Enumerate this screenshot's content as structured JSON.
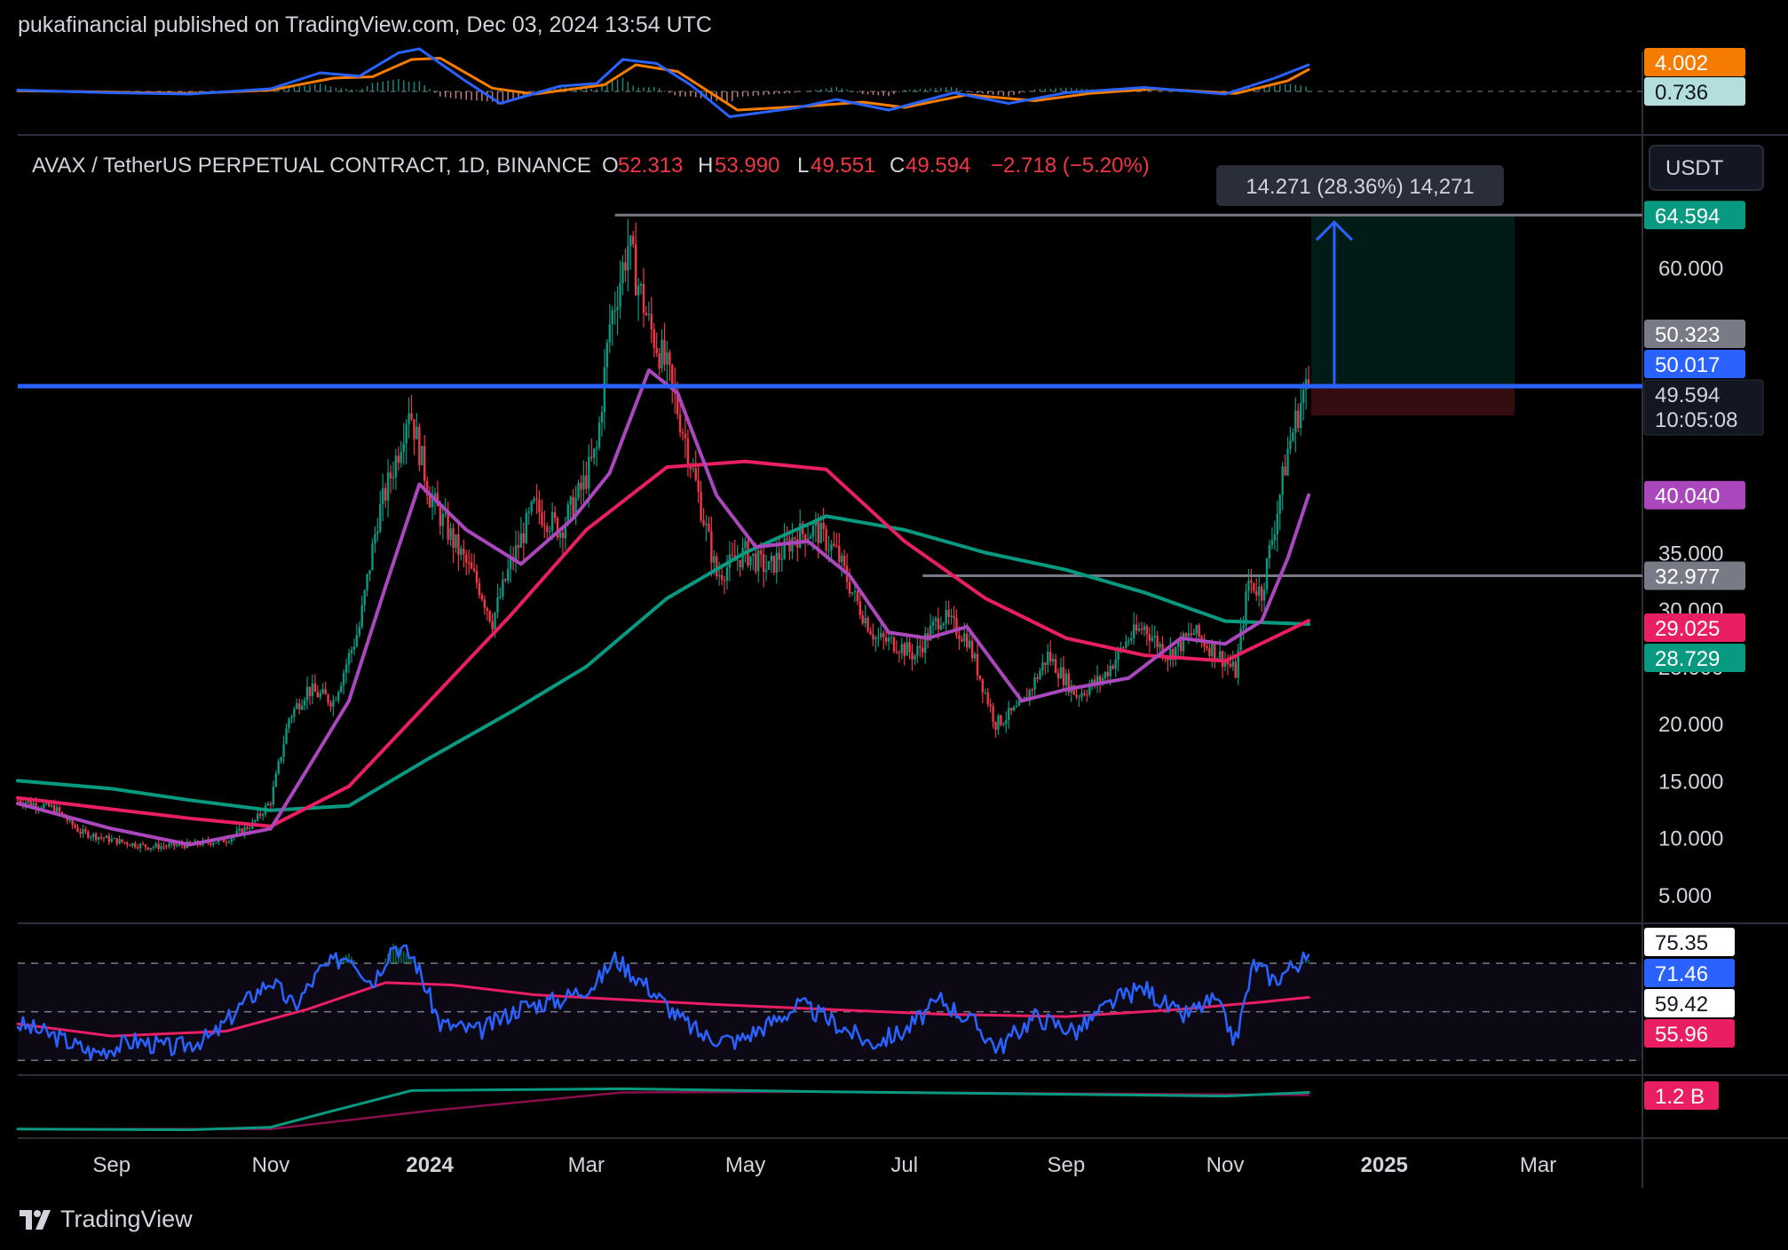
{
  "header": {
    "publisher_line": "pukafinancial published on TradingView.com, Dec 03, 2024 13:54 UTC"
  },
  "legend": {
    "symbol": "AVAX / TetherUS PERPETUAL CONTRACT, 1D, BINANCE",
    "o_label": "O",
    "o_value": "52.313",
    "h_label": "H",
    "h_value": "53.990",
    "l_label": "L",
    "l_value": "49.551",
    "c_label": "C",
    "c_value": "49.594",
    "change": "−2.718 (−5.20%)"
  },
  "currency_button": "USDT",
  "measure_label": "14.271 (28.36%) 14,271",
  "footer": {
    "brand": "TradingView"
  },
  "colors": {
    "up": "#089981",
    "down": "#f23645",
    "ma_short": "#ab47bc",
    "ma_mid": "#e91e63",
    "ma_long": "#089981",
    "level": "#2962ff",
    "grey_line": "#787b86"
  },
  "chart_data": {
    "type": "candlestick",
    "x_labels": [
      {
        "label": "Sep",
        "date": "2023-09-01",
        "bold": false
      },
      {
        "label": "Nov",
        "date": "2023-11-01",
        "bold": false
      },
      {
        "label": "2024",
        "date": "2024-01-01",
        "bold": true
      },
      {
        "label": "Mar",
        "date": "2024-03-01",
        "bold": false
      },
      {
        "label": "May",
        "date": "2024-05-01",
        "bold": false
      },
      {
        "label": "Jul",
        "date": "2024-07-01",
        "bold": false
      },
      {
        "label": "Sep",
        "date": "2024-09-01",
        "bold": false
      },
      {
        "label": "Nov",
        "date": "2024-11-01",
        "bold": false
      },
      {
        "label": "2025",
        "date": "2025-01-01",
        "bold": true
      },
      {
        "label": "Mar",
        "date": "2025-03-01",
        "bold": false
      }
    ],
    "x_range": [
      "2023-07-27",
      "2025-04-10"
    ],
    "main": {
      "ylim": [
        2.5,
        71
      ],
      "y_ticks": [
        "5.000",
        "10.000",
        "15.000",
        "20.000",
        "25.000",
        "30.000",
        "35.000",
        "60.000"
      ],
      "y_tick_values": [
        5,
        10,
        15,
        20,
        25,
        30,
        35,
        60
      ],
      "price_points": [
        [
          "2023-07-27",
          13.3
        ],
        [
          "2023-08-10",
          12.6
        ],
        [
          "2023-08-20",
          10.5
        ],
        [
          "2023-09-01",
          9.8
        ],
        [
          "2023-09-15",
          9.2
        ],
        [
          "2023-10-01",
          9.4
        ],
        [
          "2023-10-15",
          9.8
        ],
        [
          "2023-10-25",
          11.2
        ],
        [
          "2023-11-01",
          13.2
        ],
        [
          "2023-11-08",
          20.5
        ],
        [
          "2023-11-15",
          23.0
        ],
        [
          "2023-11-25",
          22.0
        ],
        [
          "2023-12-05",
          28.5
        ],
        [
          "2023-12-12",
          38.0
        ],
        [
          "2023-12-20",
          44.0
        ],
        [
          "2023-12-24",
          48.0
        ],
        [
          "2024-01-01",
          40.0
        ],
        [
          "2024-01-10",
          36.0
        ],
        [
          "2024-01-20",
          32.0
        ],
        [
          "2024-01-25",
          29.0
        ],
        [
          "2024-02-01",
          34.0
        ],
        [
          "2024-02-10",
          39.0
        ],
        [
          "2024-02-20",
          37.0
        ],
        [
          "2024-02-28",
          40.5
        ],
        [
          "2024-03-05",
          44.0
        ],
        [
          "2024-03-10",
          55.0
        ],
        [
          "2024-03-17",
          62.0
        ],
        [
          "2024-03-25",
          55.0
        ],
        [
          "2024-04-01",
          51.0
        ],
        [
          "2024-04-08",
          45.0
        ],
        [
          "2024-04-15",
          38.0
        ],
        [
          "2024-04-20",
          33.0
        ],
        [
          "2024-05-01",
          35.0
        ],
        [
          "2024-05-10",
          33.5
        ],
        [
          "2024-05-20",
          36.5
        ],
        [
          "2024-05-28",
          37.0
        ],
        [
          "2024-06-05",
          35.0
        ],
        [
          "2024-06-12",
          31.0
        ],
        [
          "2024-06-20",
          27.5
        ],
        [
          "2024-06-28",
          27.0
        ],
        [
          "2024-07-05",
          26.0
        ],
        [
          "2024-07-15",
          29.5
        ],
        [
          "2024-07-25",
          27.5
        ],
        [
          "2024-08-05",
          20.0
        ],
        [
          "2024-08-15",
          21.5
        ],
        [
          "2024-08-25",
          26.0
        ],
        [
          "2024-09-05",
          22.5
        ],
        [
          "2024-09-15",
          24.0
        ],
        [
          "2024-09-25",
          27.5
        ],
        [
          "2024-10-01",
          28.5
        ],
        [
          "2024-10-10",
          26.0
        ],
        [
          "2024-10-20",
          28.0
        ],
        [
          "2024-11-01",
          25.5
        ],
        [
          "2024-11-05",
          24.5
        ],
        [
          "2024-11-10",
          32.5
        ],
        [
          "2024-11-15",
          31.5
        ],
        [
          "2024-11-20",
          37.5
        ],
        [
          "2024-11-25",
          44.0
        ],
        [
          "2024-12-01",
          49.0
        ],
        [
          "2024-12-03",
          49.594
        ]
      ],
      "ma_short_points": [
        [
          "2023-07-27",
          13.0
        ],
        [
          "2023-09-01",
          10.8
        ],
        [
          "2023-10-01",
          9.4
        ],
        [
          "2023-11-01",
          10.8
        ],
        [
          "2023-11-15",
          16.0
        ],
        [
          "2023-12-01",
          22.0
        ],
        [
          "2023-12-15",
          32.0
        ],
        [
          "2023-12-28",
          41.0
        ],
        [
          "2024-01-15",
          37.0
        ],
        [
          "2024-02-05",
          34.0
        ],
        [
          "2024-02-25",
          38.0
        ],
        [
          "2024-03-10",
          42.0
        ],
        [
          "2024-03-25",
          51.0
        ],
        [
          "2024-04-05",
          49.0
        ],
        [
          "2024-04-20",
          40.0
        ],
        [
          "2024-05-05",
          35.5
        ],
        [
          "2024-05-25",
          36.0
        ],
        [
          "2024-06-10",
          33.0
        ],
        [
          "2024-06-25",
          28.0
        ],
        [
          "2024-07-10",
          27.5
        ],
        [
          "2024-07-25",
          28.5
        ],
        [
          "2024-08-15",
          22.0
        ],
        [
          "2024-09-01",
          23.0
        ],
        [
          "2024-09-25",
          24.0
        ],
        [
          "2024-10-15",
          27.5
        ],
        [
          "2024-11-01",
          27.0
        ],
        [
          "2024-11-15",
          29.0
        ],
        [
          "2024-11-25",
          34.5
        ],
        [
          "2024-12-03",
          40.04
        ]
      ],
      "ma_mid_points": [
        [
          "2023-07-27",
          13.5
        ],
        [
          "2023-09-01",
          12.5
        ],
        [
          "2023-10-01",
          11.7
        ],
        [
          "2023-11-01",
          11.0
        ],
        [
          "2023-12-01",
          14.5
        ],
        [
          "2024-01-01",
          22.0
        ],
        [
          "2024-02-01",
          29.5
        ],
        [
          "2024-03-01",
          37.0
        ],
        [
          "2024-04-01",
          42.5
        ],
        [
          "2024-05-01",
          43.0
        ],
        [
          "2024-06-01",
          42.3
        ],
        [
          "2024-07-01",
          36.0
        ],
        [
          "2024-08-01",
          31.0
        ],
        [
          "2024-09-01",
          27.5
        ],
        [
          "2024-10-01",
          26.0
        ],
        [
          "2024-11-01",
          25.5
        ],
        [
          "2024-12-03",
          29.025
        ]
      ],
      "ma_long_points": [
        [
          "2023-07-27",
          15.0
        ],
        [
          "2023-09-01",
          14.3
        ],
        [
          "2023-10-01",
          13.3
        ],
        [
          "2023-11-01",
          12.4
        ],
        [
          "2023-12-01",
          12.8
        ],
        [
          "2024-01-01",
          17.0
        ],
        [
          "2024-02-01",
          21.0
        ],
        [
          "2024-03-01",
          25.0
        ],
        [
          "2024-04-01",
          31.0
        ],
        [
          "2024-05-01",
          35.0
        ],
        [
          "2024-06-01",
          38.2
        ],
        [
          "2024-07-01",
          37.0
        ],
        [
          "2024-08-01",
          35.0
        ],
        [
          "2024-09-01",
          33.5
        ],
        [
          "2024-10-01",
          31.5
        ],
        [
          "2024-11-01",
          29.0
        ],
        [
          "2024-12-03",
          28.729
        ]
      ],
      "resistance_level": 49.594,
      "upper_grey_line": {
        "value": 64.594,
        "start": "2024-03-12"
      },
      "lower_grey_line": {
        "value": 32.977,
        "start": "2024-07-08"
      },
      "position": {
        "start": "2024-12-04",
        "end": "2025-02-20",
        "entry": 49.594,
        "target": 64.594,
        "stop": 47.03
      },
      "price_tags": [
        {
          "value": 64.594,
          "label": "64.594",
          "bg": "#089981",
          "fg": "#ffffff"
        },
        {
          "value": 50.323,
          "label": "50.323",
          "bg": "#787b86",
          "fg": "#ffffff"
        },
        {
          "value": 50.017,
          "label": "50.017",
          "bg": "#2962ff",
          "fg": "#ffffff"
        },
        {
          "value": 47.03,
          "label": "47.030",
          "bg": "#f23645",
          "fg": "#ffffff"
        },
        {
          "value": 40.04,
          "label": "40.040",
          "bg": "#ab47bc",
          "fg": "#ffffff"
        },
        {
          "value": 32.977,
          "label": "32.977",
          "bg": "#787b86",
          "fg": "#ffffff"
        },
        {
          "value": 29.025,
          "label": "29.025",
          "bg": "#e91e63",
          "fg": "#ffffff"
        },
        {
          "value": 28.729,
          "label": "28.729",
          "bg": "#089981",
          "fg": "#ffffff"
        }
      ],
      "last_price": {
        "value": 49.594,
        "label": "49.594",
        "countdown": "10:05:08"
      }
    },
    "macd": {
      "ylim": [
        -6,
        6
      ],
      "macd_points": [
        [
          "2023-07-27",
          0.2
        ],
        [
          "2023-09-01",
          -0.2
        ],
        [
          "2023-10-01",
          -0.4
        ],
        [
          "2023-11-01",
          0.4
        ],
        [
          "2023-11-20",
          2.8
        ],
        [
          "2023-12-05",
          2.3
        ],
        [
          "2023-12-20",
          5.8
        ],
        [
          "2023-12-28",
          6.4
        ],
        [
          "2024-01-15",
          1.5
        ],
        [
          "2024-01-28",
          -1.8
        ],
        [
          "2024-02-20",
          0.8
        ],
        [
          "2024-03-05",
          1.2
        ],
        [
          "2024-03-15",
          4.8
        ],
        [
          "2024-03-28",
          4.2
        ],
        [
          "2024-04-10",
          1.0
        ],
        [
          "2024-04-25",
          -3.8
        ],
        [
          "2024-05-20",
          -2.5
        ],
        [
          "2024-06-05",
          -1.2
        ],
        [
          "2024-06-25",
          -2.8
        ],
        [
          "2024-07-20",
          -0.2
        ],
        [
          "2024-08-10",
          -1.8
        ],
        [
          "2024-09-01",
          -0.2
        ],
        [
          "2024-10-01",
          0.6
        ],
        [
          "2024-11-01",
          -0.4
        ],
        [
          "2024-11-20",
          2.0
        ],
        [
          "2024-12-03",
          4.002
        ]
      ],
      "signal_points": [
        [
          "2023-07-27",
          0.1
        ],
        [
          "2023-09-01",
          -0.1
        ],
        [
          "2023-10-01",
          -0.3
        ],
        [
          "2023-11-01",
          0.2
        ],
        [
          "2023-11-25",
          2.0
        ],
        [
          "2023-12-10",
          2.2
        ],
        [
          "2023-12-25",
          4.8
        ],
        [
          "2024-01-05",
          5.0
        ],
        [
          "2024-01-25",
          0.5
        ],
        [
          "2024-02-10",
          -0.4
        ],
        [
          "2024-03-08",
          1.0
        ],
        [
          "2024-03-20",
          4.0
        ],
        [
          "2024-04-05",
          3.0
        ],
        [
          "2024-04-28",
          -2.8
        ],
        [
          "2024-05-25",
          -2.2
        ],
        [
          "2024-06-15",
          -1.6
        ],
        [
          "2024-07-01",
          -2.4
        ],
        [
          "2024-07-25",
          -0.5
        ],
        [
          "2024-08-20",
          -1.4
        ],
        [
          "2024-09-10",
          -0.3
        ],
        [
          "2024-10-05",
          0.4
        ],
        [
          "2024-11-05",
          -0.3
        ],
        [
          "2024-11-25",
          1.6
        ],
        [
          "2024-12-03",
          3.3
        ]
      ],
      "tags": [
        {
          "value": 4.002,
          "label": "4.002",
          "bg": "#f57c00",
          "fg": "#ffffff"
        },
        {
          "value": 0.736,
          "label": "0.736",
          "bg": "#b2dfdb",
          "fg": "#131722"
        }
      ]
    },
    "rsi": {
      "ylim": [
        25,
        85
      ],
      "band_upper": 70,
      "band_lower": 30,
      "mid": 50,
      "rsi_points": [
        [
          "2023-07-27",
          45
        ],
        [
          "2023-08-10",
          40
        ],
        [
          "2023-08-25",
          33
        ],
        [
          "2023-09-10",
          38
        ],
        [
          "2023-09-25",
          35
        ],
        [
          "2023-10-10",
          40
        ],
        [
          "2023-10-20",
          52
        ],
        [
          "2023-11-01",
          63
        ],
        [
          "2023-11-10",
          52
        ],
        [
          "2023-11-20",
          67
        ],
        [
          "2023-12-01",
          74
        ],
        [
          "2023-12-10",
          62
        ],
        [
          "2023-12-18",
          78
        ],
        [
          "2023-12-26",
          72
        ],
        [
          "2024-01-05",
          45
        ],
        [
          "2024-01-20",
          42
        ],
        [
          "2024-02-05",
          52
        ],
        [
          "2024-02-20",
          55
        ],
        [
          "2024-03-05",
          62
        ],
        [
          "2024-03-12",
          72
        ],
        [
          "2024-03-25",
          60
        ],
        [
          "2024-04-05",
          48
        ],
        [
          "2024-04-15",
          40
        ],
        [
          "2024-04-28",
          38
        ],
        [
          "2024-05-10",
          45
        ],
        [
          "2024-05-22",
          53
        ],
        [
          "2024-06-05",
          45
        ],
        [
          "2024-06-18",
          37
        ],
        [
          "2024-07-01",
          42
        ],
        [
          "2024-07-15",
          55
        ],
        [
          "2024-07-28",
          45
        ],
        [
          "2024-08-06",
          35
        ],
        [
          "2024-08-20",
          48
        ],
        [
          "2024-09-05",
          42
        ],
        [
          "2024-09-20",
          55
        ],
        [
          "2024-10-01",
          60
        ],
        [
          "2024-10-15",
          48
        ],
        [
          "2024-10-28",
          55
        ],
        [
          "2024-11-05",
          38
        ],
        [
          "2024-11-12",
          70
        ],
        [
          "2024-11-20",
          63
        ],
        [
          "2024-11-28",
          70
        ],
        [
          "2024-12-03",
          71.46
        ]
      ],
      "rsi_ma_points": [
        [
          "2023-07-27",
          45
        ],
        [
          "2023-09-01",
          40
        ],
        [
          "2023-10-15",
          42
        ],
        [
          "2023-11-15",
          51
        ],
        [
          "2023-12-15",
          62
        ],
        [
          "2024-01-10",
          61
        ],
        [
          "2024-02-10",
          57
        ],
        [
          "2024-03-15",
          55
        ],
        [
          "2024-04-20",
          53
        ],
        [
          "2024-06-01",
          51
        ],
        [
          "2024-07-15",
          49
        ],
        [
          "2024-09-01",
          48
        ],
        [
          "2024-10-15",
          51
        ],
        [
          "2024-11-15",
          54
        ],
        [
          "2024-12-03",
          55.96
        ]
      ],
      "tags": [
        {
          "value": 75.35,
          "label": "75.35",
          "bg": "#ffffff",
          "fg": "#131722"
        },
        {
          "value": 71.46,
          "label": "71.46",
          "bg": "#2962ff",
          "fg": "#ffffff"
        },
        {
          "value": 59.42,
          "label": "59.42",
          "bg": "#ffffff",
          "fg": "#131722"
        },
        {
          "value": 55.96,
          "label": "55.96",
          "bg": "#e91e63",
          "fg": "#ffffff"
        }
      ]
    },
    "obv": {
      "ylim": [
        0,
        1.6
      ],
      "obv_points": [
        [
          "2023-07-27",
          0.2
        ],
        [
          "2023-10-01",
          0.18
        ],
        [
          "2023-11-01",
          0.25
        ],
        [
          "2023-11-25",
          0.7
        ],
        [
          "2023-12-25",
          1.25
        ],
        [
          "2024-03-15",
          1.3
        ],
        [
          "2024-06-01",
          1.22
        ],
        [
          "2024-09-01",
          1.15
        ],
        [
          "2024-11-01",
          1.1
        ],
        [
          "2024-12-03",
          1.2
        ]
      ],
      "obv_ma_points": [
        [
          "2023-07-27",
          0.2
        ],
        [
          "2023-11-01",
          0.2
        ],
        [
          "2024-01-01",
          0.7
        ],
        [
          "2024-03-15",
          1.2
        ],
        [
          "2024-06-01",
          1.22
        ],
        [
          "2024-09-01",
          1.17
        ],
        [
          "2024-12-03",
          1.13
        ]
      ],
      "tag": {
        "value": 1.2,
        "label": "1.2 B",
        "bg": "#e91e63",
        "fg": "#ffffff"
      }
    }
  }
}
